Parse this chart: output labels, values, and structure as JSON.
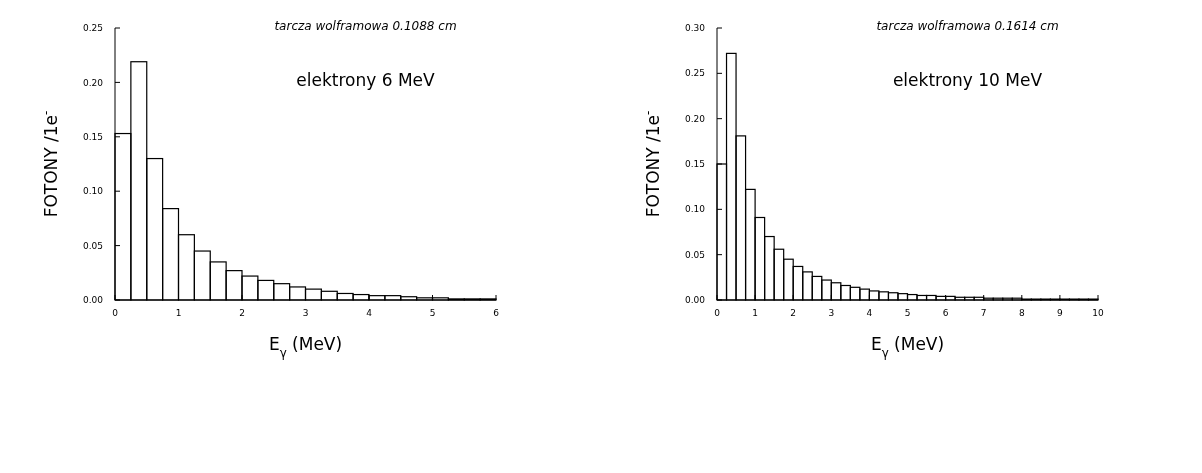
{
  "chart_data": [
    {
      "type": "histogram",
      "title": "tarcza wolframowa 0.1088 cm",
      "annotations": [
        "elektrony 6 MeV"
      ],
      "xlabel": "E$_{γ}$ (MeV)",
      "ylabel": "FOTONY  /1e$^{-}$",
      "color": "#000000",
      "bins": [
        0,
        0.25,
        0.5,
        0.75,
        1,
        1.25,
        1.5,
        1.75,
        2,
        2.25,
        2.5,
        2.75,
        3,
        3.25,
        3.5,
        3.75,
        4,
        4.25,
        4.5,
        4.75,
        5,
        5.25,
        5.5,
        5.75,
        6
      ],
      "values": [
        0.153,
        0.219,
        0.13,
        0.084,
        0.06,
        0.045,
        0.035,
        0.027,
        0.022,
        0.018,
        0.015,
        0.012,
        0.01,
        0.008,
        0.006,
        0.005,
        0.004,
        0.004,
        0.003,
        0.002,
        0.002,
        0.001,
        0.001,
        0.001
      ],
      "xlim": [
        0,
        6
      ],
      "xticks": [
        0,
        1,
        2,
        3,
        4,
        5,
        6
      ],
      "ylim": [
        0,
        0.25
      ],
      "yticks": [
        {
          "value": 0,
          "label": "0.00"
        },
        {
          "value": 0.05,
          "label": "0.05"
        },
        {
          "value": 0.1,
          "label": "0.10"
        },
        {
          "value": 0.15,
          "label": "0.15"
        },
        {
          "value": 0.2,
          "label": "0.20"
        },
        {
          "value": 0.25,
          "label": "0.25"
        }
      ]
    },
    {
      "type": "histogram",
      "title": "tarcza wolframowa 0.1614 cm",
      "annotations": [
        "elektrony 10 MeV"
      ],
      "xlabel": "E$_{γ}$ (MeV)",
      "ylabel": "FOTONY  /1e$^{-}$",
      "color": "#000000",
      "bins": [
        0,
        0.25,
        0.5,
        0.75,
        1,
        1.25,
        1.5,
        1.75,
        2,
        2.25,
        2.5,
        2.75,
        3,
        3.25,
        3.5,
        3.75,
        4,
        4.25,
        4.5,
        4.75,
        5,
        5.25,
        5.5,
        5.75,
        6,
        6.25,
        6.5,
        6.75,
        7,
        7.25,
        7.5,
        7.75,
        8,
        8.25,
        8.5,
        8.75,
        9,
        9.25,
        9.5,
        9.75,
        10
      ],
      "values": [
        0.15,
        0.272,
        0.181,
        0.122,
        0.091,
        0.07,
        0.056,
        0.045,
        0.037,
        0.031,
        0.026,
        0.022,
        0.019,
        0.016,
        0.014,
        0.012,
        0.01,
        0.009,
        0.008,
        0.007,
        0.006,
        0.005,
        0.005,
        0.004,
        0.004,
        0.003,
        0.003,
        0.003,
        0.002,
        0.002,
        0.002,
        0.002,
        0.001,
        0.001,
        0.001,
        0.001,
        0.001,
        0.001,
        0.001,
        0.001
      ],
      "xlim": [
        0,
        10
      ],
      "xticks": [
        0,
        1,
        2,
        3,
        4,
        5,
        6,
        7,
        8,
        9,
        10
      ],
      "ylim": [
        0,
        0.3
      ],
      "yticks": [
        {
          "value": 0,
          "label": "0.00"
        },
        {
          "value": 0.05,
          "label": "0.05"
        },
        {
          "value": 0.1,
          "label": "0.10"
        },
        {
          "value": 0.15,
          "label": "0.15"
        },
        {
          "value": 0.2,
          "label": "0.20"
        },
        {
          "value": 0.25,
          "label": "0.25"
        },
        {
          "value": 0.3,
          "label": "0.30"
        }
      ]
    }
  ]
}
